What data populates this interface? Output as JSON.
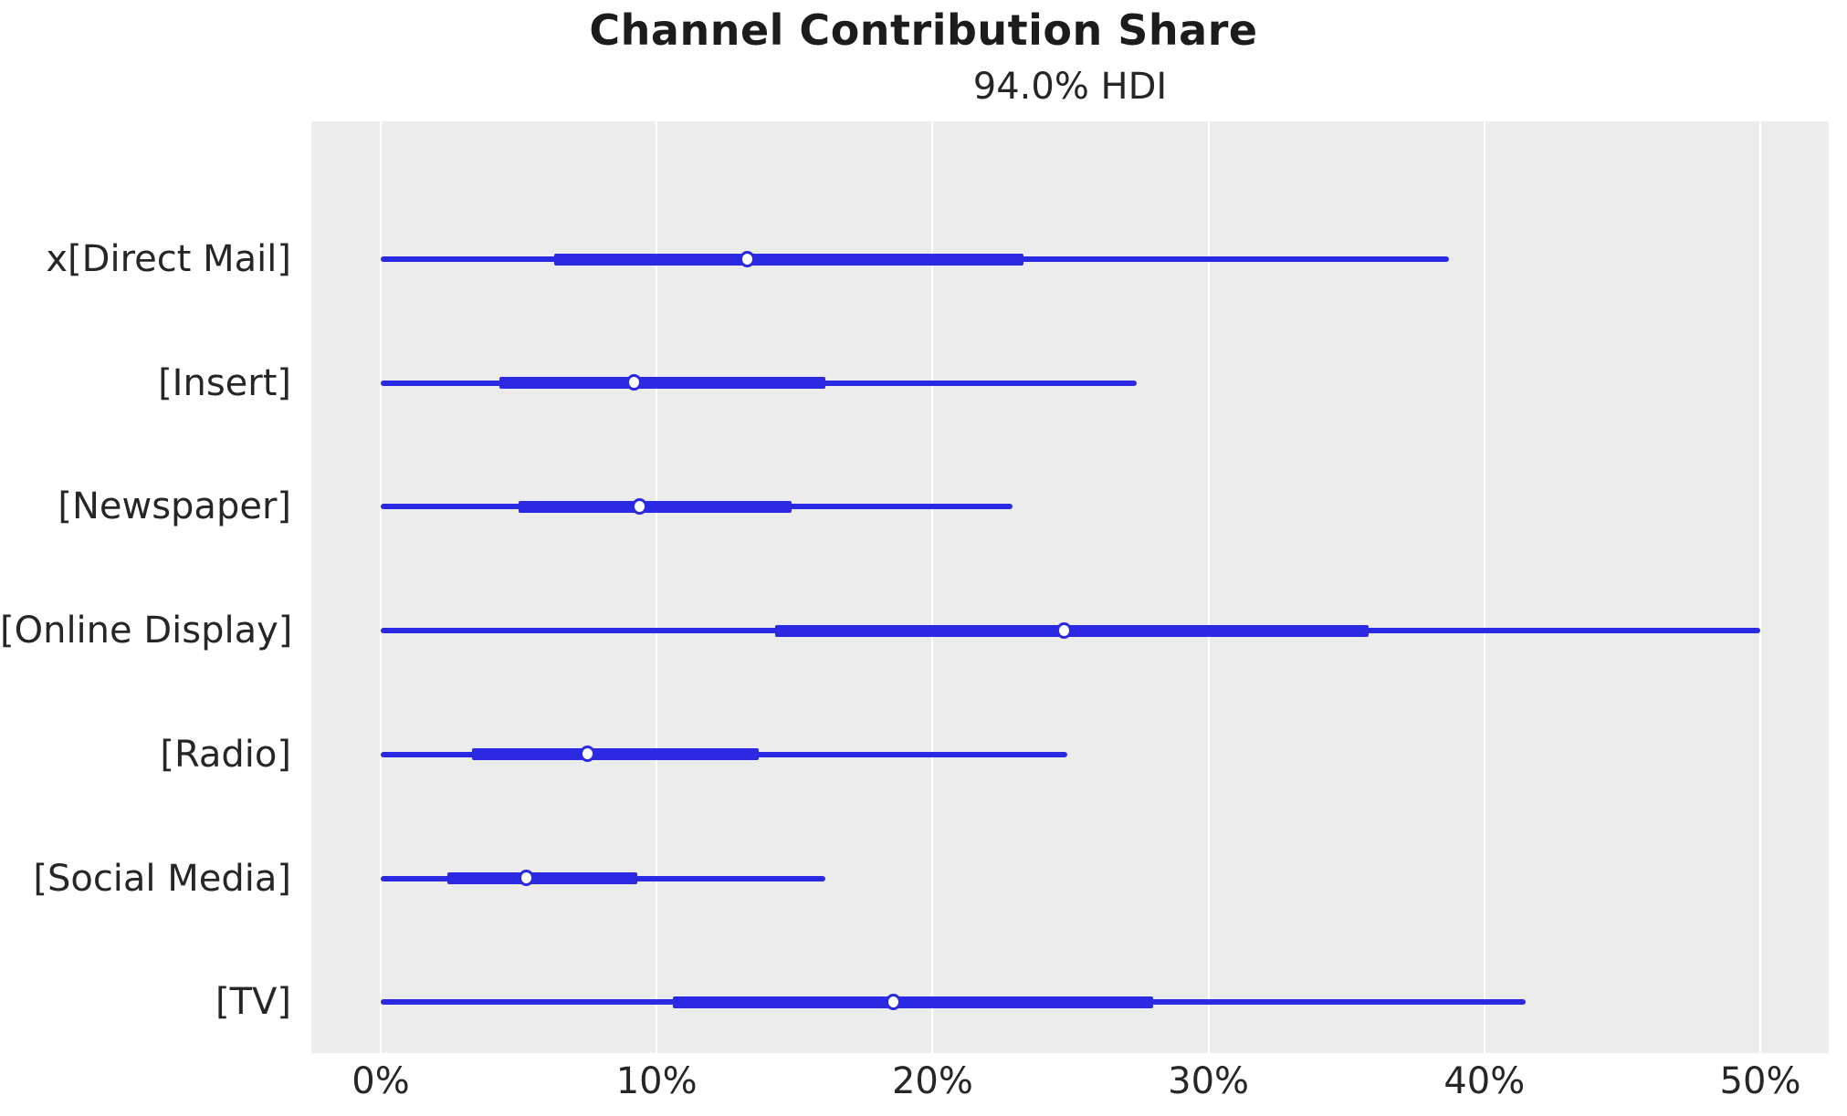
{
  "figure": {
    "title": "Channel Contribution Share",
    "subtitle": "94.0% HDI"
  },
  "chart_data": {
    "type": "forest",
    "title": "Channel Contribution Share",
    "subtitle": "94.0% HDI",
    "interval_width_label": "94.0% HDI",
    "xlabel": "",
    "ylabel": "",
    "unit": "%",
    "x_tick_labels": [
      "0%",
      "10%",
      "20%",
      "30%",
      "40%",
      "50%"
    ],
    "x_tick_values": [
      0,
      10,
      20,
      30,
      40,
      50
    ],
    "xlim": [
      -2.5,
      52.5
    ],
    "grid": "vertical white gridlines on light grey axes background",
    "legend_position": "none",
    "series": [
      {
        "label": "x[Direct Mail]",
        "hdi_94": [
          0.0,
          38.7
        ],
        "central_interval": [
          6.3,
          23.3
        ],
        "median": 13.3
      },
      {
        "label": "[Insert]",
        "hdi_94": [
          0.0,
          27.4
        ],
        "central_interval": [
          4.3,
          16.1
        ],
        "median": 9.2
      },
      {
        "label": "[Newspaper]",
        "hdi_94": [
          0.0,
          22.9
        ],
        "central_interval": [
          5.0,
          14.9
        ],
        "median": 9.4
      },
      {
        "label": "[Online Display]",
        "hdi_94": [
          0.0,
          50.0
        ],
        "central_interval": [
          14.3,
          35.8
        ],
        "median": 24.8
      },
      {
        "label": "[Radio]",
        "hdi_94": [
          0.0,
          24.9
        ],
        "central_interval": [
          3.3,
          13.7
        ],
        "median": 7.5
      },
      {
        "label": "[Social Media]",
        "hdi_94": [
          0.0,
          16.1
        ],
        "central_interval": [
          2.4,
          9.3
        ],
        "median": 5.3
      },
      {
        "label": "[TV]",
        "hdi_94": [
          0.0,
          41.5
        ],
        "central_interval": [
          10.6,
          28.0
        ],
        "median": 18.6
      }
    ],
    "colors": {
      "line": "#2b2ae2",
      "marker_face": "#ffffff",
      "marker_edge": "#2b2ae2",
      "axes_background": "#ececec",
      "gridline": "#ffffff",
      "text": "#262626",
      "title_text": "#1c1c1c"
    }
  }
}
